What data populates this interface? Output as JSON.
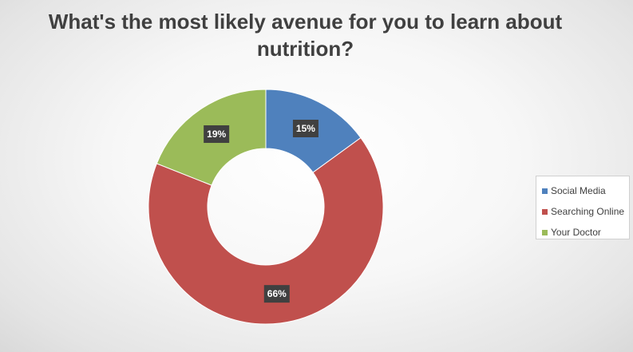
{
  "chart_data": {
    "type": "pie",
    "donut": true,
    "title": "What's the most likely avenue for you to learn about nutrition?",
    "categories": [
      "Social Media",
      "Searching Online",
      "Your Doctor"
    ],
    "values": [
      15,
      66,
      19
    ],
    "data_labels": [
      "15%",
      "66%",
      "19%"
    ],
    "colors": [
      "#4f81bd",
      "#c0504d",
      "#9bbb59"
    ],
    "legend_position": "right",
    "start_angle_deg": 0,
    "direction": "clockwise"
  }
}
